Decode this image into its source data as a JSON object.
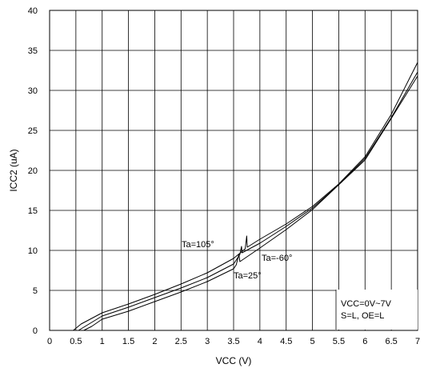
{
  "chart_data": {
    "type": "line",
    "xlabel": "VCC (V)",
    "ylabel": "ICC2 (uA)",
    "xlim": [
      0,
      7
    ],
    "ylim": [
      0,
      40
    ],
    "x_ticks": [
      "0",
      "0.5",
      "1",
      "1.5",
      "2",
      "2.5",
      "3",
      "3.5",
      "4",
      "4.5",
      "5",
      "5.5",
      "6",
      "6.5",
      "7"
    ],
    "y_ticks": [
      "0",
      "5",
      "10",
      "15",
      "20",
      "25",
      "30",
      "35",
      "40"
    ],
    "grid": true,
    "series": [
      {
        "name": "Ta=105°",
        "points": [
          [
            0.45,
            0
          ],
          [
            0.6,
            0.8
          ],
          [
            1.0,
            2.2
          ],
          [
            1.5,
            3.3
          ],
          [
            2.0,
            4.5
          ],
          [
            2.5,
            5.8
          ],
          [
            3.0,
            7.2
          ],
          [
            3.5,
            9.0
          ],
          [
            3.72,
            10.2
          ],
          [
            3.75,
            11.8
          ],
          [
            3.76,
            10.4
          ],
          [
            4.0,
            11.4
          ],
          [
            4.5,
            13.3
          ],
          [
            5.0,
            15.5
          ],
          [
            5.5,
            18.3
          ],
          [
            6.0,
            21.7
          ],
          [
            6.5,
            27.0
          ],
          [
            7.0,
            33.5
          ]
        ]
      },
      {
        "name": "Ta=-60°",
        "points": [
          [
            0.55,
            0
          ],
          [
            0.7,
            0.6
          ],
          [
            1.0,
            1.8
          ],
          [
            1.5,
            2.9
          ],
          [
            2.0,
            4.1
          ],
          [
            2.5,
            5.3
          ],
          [
            3.0,
            6.6
          ],
          [
            3.5,
            8.3
          ],
          [
            3.62,
            9.5
          ],
          [
            3.65,
            10.5
          ],
          [
            3.66,
            9.7
          ],
          [
            4.0,
            10.9
          ],
          [
            4.5,
            13.0
          ],
          [
            5.0,
            15.3
          ],
          [
            5.5,
            18.2
          ],
          [
            6.0,
            21.5
          ],
          [
            6.5,
            26.6
          ],
          [
            7.0,
            32.3
          ]
        ]
      },
      {
        "name": "Ta=25°",
        "points": [
          [
            0.65,
            0
          ],
          [
            0.8,
            0.5
          ],
          [
            1.0,
            1.4
          ],
          [
            1.5,
            2.4
          ],
          [
            2.0,
            3.6
          ],
          [
            2.5,
            4.8
          ],
          [
            3.0,
            6.1
          ],
          [
            3.5,
            7.7
          ],
          [
            3.55,
            8.2
          ],
          [
            3.6,
            9.5
          ],
          [
            3.62,
            8.6
          ],
          [
            4.0,
            10.3
          ],
          [
            4.5,
            12.6
          ],
          [
            5.0,
            15.1
          ],
          [
            5.5,
            18.2
          ],
          [
            6.0,
            21.3
          ],
          [
            6.5,
            26.5
          ],
          [
            7.0,
            31.8
          ]
        ]
      }
    ],
    "annotations": {
      "ta105": "Ta=105°",
      "ta_60": "Ta=-60°",
      "ta25": "Ta=25°",
      "cond1": "VCC=0V~7V",
      "cond2": "S=L, OE=L"
    }
  }
}
